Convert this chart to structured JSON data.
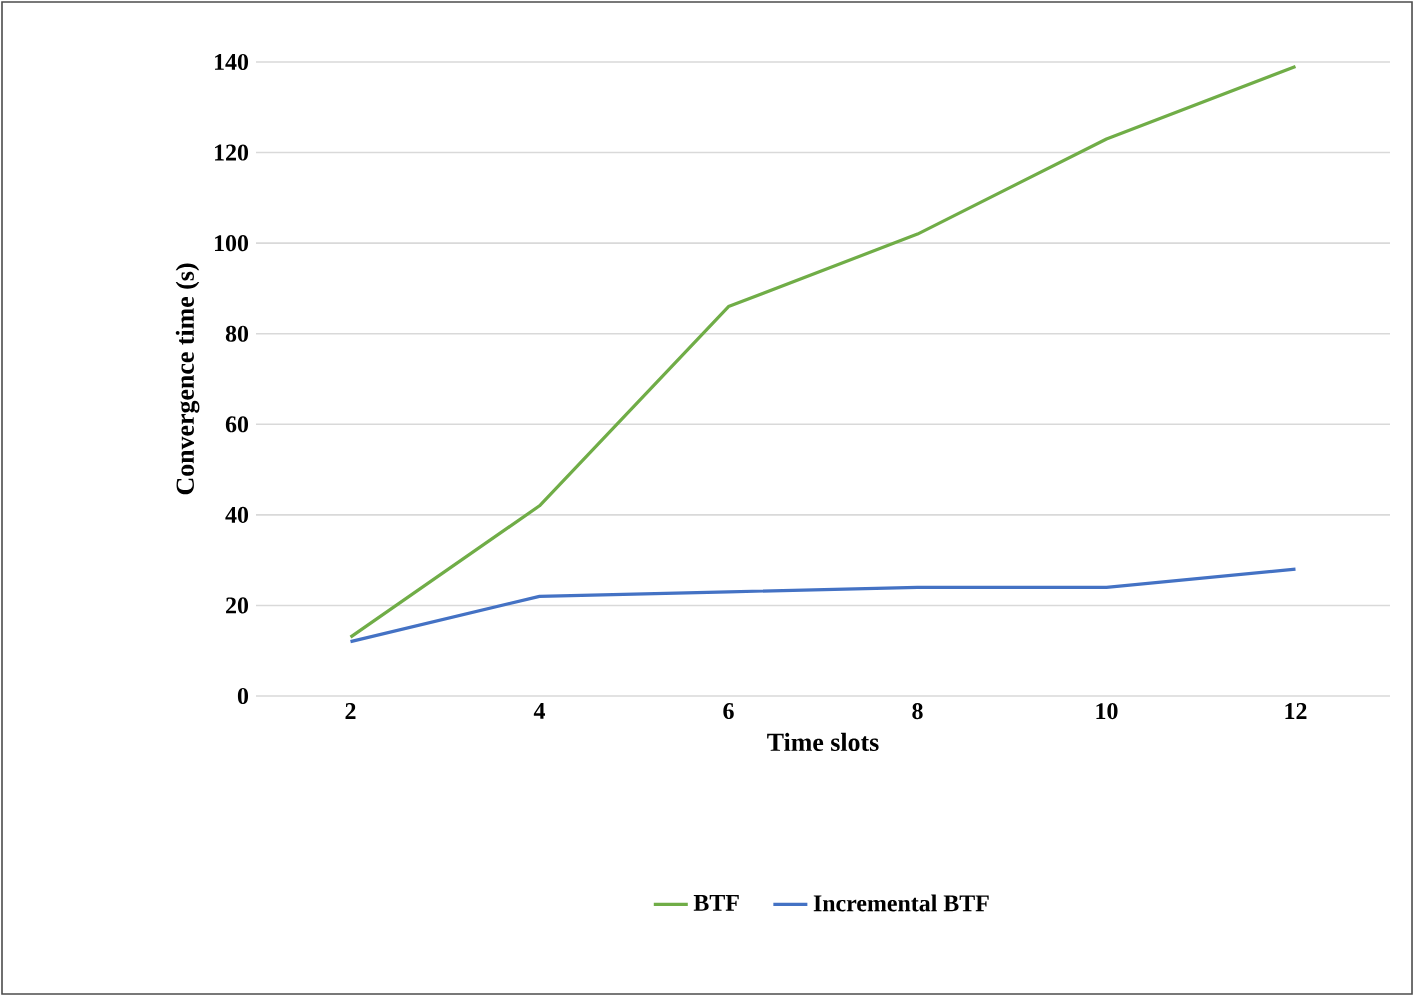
{
  "chart_data": {
    "type": "line",
    "xlabel": "Time slots",
    "ylabel": "Convergence time (s)",
    "categories": [
      "2",
      "4",
      "6",
      "8",
      "10",
      "12"
    ],
    "series": [
      {
        "name": "BTF",
        "color": "#70ad47",
        "values": [
          13,
          42,
          86,
          102,
          123,
          139
        ]
      },
      {
        "name": "Incremental BTF",
        "color": "#4472c4",
        "values": [
          12,
          22,
          23,
          24,
          24,
          28
        ]
      }
    ],
    "ylim": [
      0,
      140
    ],
    "yticks": [
      0,
      20,
      40,
      60,
      80,
      100,
      120,
      140
    ],
    "grid": "y",
    "legend": "bottom",
    "marker": "none",
    "line_style": "solid"
  }
}
